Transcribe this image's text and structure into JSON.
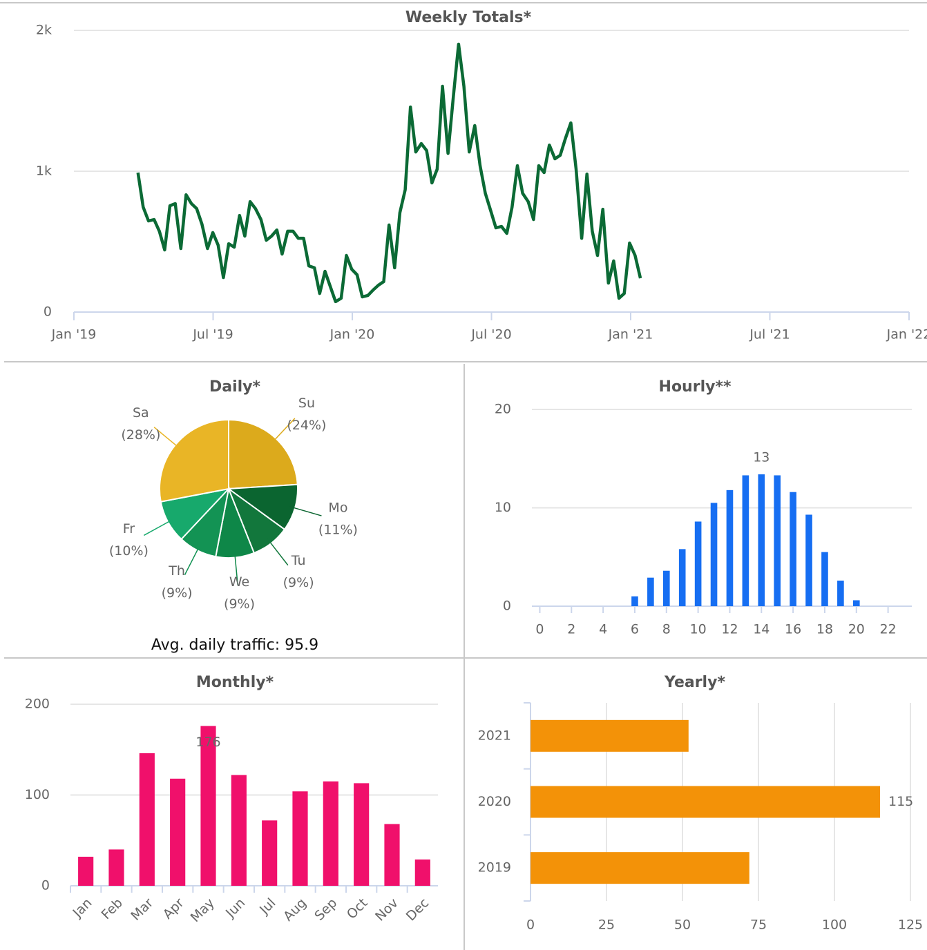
{
  "chart_data": [
    {
      "type": "line",
      "title": "Weekly Totals*",
      "color": "#0b6a35",
      "x": [
        2019.23,
        2019.249,
        2019.268,
        2019.288,
        2019.307,
        2019.326,
        2019.345,
        2019.364,
        2019.384,
        2019.403,
        2019.422,
        2019.441,
        2019.46,
        2019.48,
        2019.499,
        2019.518,
        2019.537,
        2019.556,
        2019.576,
        2019.595,
        2019.614,
        2019.633,
        2019.652,
        2019.672,
        2019.691,
        2019.71,
        2019.729,
        2019.748,
        2019.768,
        2019.787,
        2019.806,
        2019.825,
        2019.844,
        2019.864,
        2019.883,
        2019.902,
        2019.921,
        2019.94,
        2019.96,
        2019.979,
        2019.998,
        2020.017,
        2020.036,
        2020.056,
        2020.075,
        2020.094,
        2020.113,
        2020.132,
        2020.152,
        2020.171,
        2020.19,
        2020.209,
        2020.228,
        2020.248,
        2020.267,
        2020.286,
        2020.305,
        2020.324,
        2020.344,
        2020.363,
        2020.382,
        2020.401,
        2020.42,
        2020.44,
        2020.459,
        2020.478,
        2020.497,
        2020.516,
        2020.536,
        2020.555,
        2020.574,
        2020.593,
        2020.612,
        2020.632,
        2020.651,
        2020.67,
        2020.689,
        2020.708,
        2020.728,
        2020.747,
        2020.766,
        2020.785,
        2020.804,
        2020.824,
        2020.843,
        2020.862,
        2020.881,
        2020.9,
        2020.92,
        2020.939,
        2020.958,
        2020.977,
        2020.996,
        2021.016,
        2021.035
      ],
      "values": [
        990,
        745,
        647,
        657,
        574,
        441,
        755,
        770,
        451,
        833,
        770,
        735,
        623,
        451,
        564,
        475,
        245,
        485,
        461,
        686,
        539,
        784,
        735,
        657,
        510,
        539,
        583,
        412,
        574,
        574,
        524,
        524,
        328,
        314,
        132,
        289,
        181,
        74,
        98,
        402,
        304,
        265,
        108,
        118,
        157,
        191,
        216,
        618,
        314,
        706,
        868,
        1456,
        1137,
        1196,
        1147,
        917,
        1015,
        1603,
        1127,
        1529,
        1902,
        1603,
        1137,
        1324,
        1039,
        843,
        721,
        598,
        608,
        559,
        745,
        1039,
        843,
        784,
        657,
        1039,
        990,
        1186,
        1088,
        1113,
        1235,
        1343,
        1015,
        524,
        980,
        574,
        402,
        730,
        206,
        363,
        98,
        132,
        490,
        402,
        240
      ],
      "xlim": [
        2019,
        2022
      ],
      "xticks": [
        {
          "value": 2019,
          "label": "Jan '19"
        },
        {
          "value": 2019.5,
          "label": "Jul '19"
        },
        {
          "value": 2020,
          "label": "Jan '20"
        },
        {
          "value": 2020.5,
          "label": "Jul '20"
        },
        {
          "value": 2021,
          "label": "Jan '21"
        },
        {
          "value": 2021.5,
          "label": "Jul '21"
        },
        {
          "value": 2022,
          "label": "Jan '22"
        }
      ],
      "ylim": [
        0,
        2000
      ],
      "yticks": [
        0,
        {
          "value": 1000,
          "label": "1k"
        },
        {
          "value": 2000,
          "label": "2k"
        }
      ],
      "grid": true
    },
    {
      "type": "pie",
      "title": "Daily*",
      "subtitle": "Avg. daily traffic: 95.9",
      "categories": [
        "Su",
        "Mo",
        "Tu",
        "We",
        "Th",
        "Fr",
        "Sa"
      ],
      "values": [
        24,
        11,
        9,
        9,
        9,
        10,
        28
      ],
      "value_labels": [
        "(24%)",
        "(11%)",
        "(9%)",
        "(9%)",
        "(9%)",
        "(10%)",
        "(28%)"
      ],
      "colors": [
        "#dcaa1c",
        "#0b6530",
        "#12773c",
        "#0e8748",
        "#139354",
        "#17a96c",
        "#e9b526"
      ]
    },
    {
      "type": "bar",
      "title": "Hourly**",
      "color": "#166ef2",
      "x": [
        0,
        1,
        2,
        3,
        4,
        5,
        6,
        7,
        8,
        9,
        10,
        11,
        12,
        13,
        14,
        15,
        16,
        17,
        18,
        19,
        20,
        21,
        22,
        23
      ],
      "values": [
        0,
        0,
        0,
        0,
        0,
        0,
        1.0,
        2.9,
        3.6,
        5.8,
        8.6,
        10.5,
        11.8,
        13.3,
        13.4,
        13.3,
        11.6,
        9.3,
        5.5,
        2.6,
        0.6,
        0,
        0,
        0
      ],
      "value_labels": [
        null,
        null,
        null,
        null,
        null,
        null,
        null,
        null,
        null,
        null,
        null,
        null,
        null,
        null,
        "13",
        null,
        null,
        null,
        null,
        null,
        null,
        null,
        null,
        null
      ],
      "xlim": [
        -0.5,
        23.5
      ],
      "xticks": [
        0,
        2,
        4,
        6,
        8,
        10,
        12,
        14,
        16,
        18,
        20,
        22
      ],
      "ylim": [
        0,
        20
      ],
      "yticks": [
        0,
        10,
        20
      ],
      "grid": true
    },
    {
      "type": "bar",
      "title": "Monthly*",
      "color": "#f0106b",
      "categories": [
        "Jan",
        "Feb",
        "Mar",
        "Apr",
        "May",
        "Jun",
        "Jul",
        "Aug",
        "Sep",
        "Oct",
        "Nov",
        "Dec"
      ],
      "values": [
        32,
        40,
        146,
        118,
        176,
        122,
        72,
        104,
        115,
        113,
        68,
        29
      ],
      "value_labels": [
        null,
        null,
        null,
        null,
        "176",
        null,
        null,
        null,
        null,
        null,
        null,
        null
      ],
      "ylim": [
        0,
        200
      ],
      "yticks": [
        0,
        100,
        200
      ],
      "grid": true
    },
    {
      "type": "barh",
      "title": "Yearly*",
      "color": "#f39208",
      "categories": [
        "2021",
        "2020",
        "2019"
      ],
      "values": [
        52,
        115,
        72
      ],
      "value_labels": [
        null,
        "115",
        null
      ],
      "xlim": [
        0,
        125
      ],
      "xticks": [
        0,
        25,
        50,
        75,
        100,
        125
      ],
      "grid": true
    }
  ]
}
